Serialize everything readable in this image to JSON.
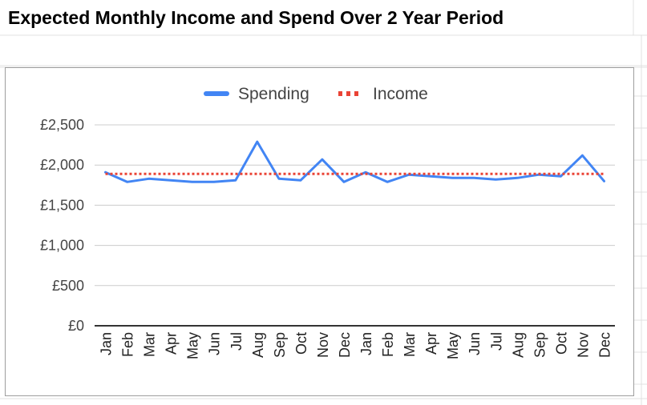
{
  "sheet": {
    "title": "Expected Monthly Income and Spend Over 2 Year Period"
  },
  "chart_data": {
    "type": "line",
    "title": "",
    "xlabel": "",
    "ylabel": "",
    "categories": [
      "Jan",
      "Feb",
      "Mar",
      "Apr",
      "May",
      "Jun",
      "Jul",
      "Aug",
      "Sep",
      "Oct",
      "Nov",
      "Dec",
      "Jan",
      "Feb",
      "Mar",
      "Apr",
      "May",
      "Jun",
      "Jul",
      "Aug",
      "Sep",
      "Oct",
      "Nov",
      "Dec"
    ],
    "series": [
      {
        "name": "Spending",
        "color": "#4285f4",
        "style": "solid",
        "values": [
          1910,
          1790,
          1830,
          1810,
          1790,
          1790,
          1810,
          2290,
          1830,
          1810,
          2070,
          1790,
          1910,
          1790,
          1880,
          1860,
          1840,
          1840,
          1820,
          1840,
          1880,
          1860,
          2120,
          1800
        ]
      },
      {
        "name": "Income",
        "color": "#ea4335",
        "style": "dotted",
        "values": [
          1890,
          1890,
          1890,
          1890,
          1890,
          1890,
          1890,
          1890,
          1890,
          1890,
          1890,
          1890,
          1890,
          1890,
          1890,
          1890,
          1890,
          1890,
          1890,
          1890,
          1890,
          1890,
          1890,
          1890
        ]
      }
    ],
    "ylim": [
      0,
      2500
    ],
    "yticks": [
      0,
      500,
      1000,
      1500,
      2000,
      2500
    ],
    "ytick_labels": [
      "£0",
      "£500",
      "£1,000",
      "£1,500",
      "£2,000",
      "£2,500"
    ],
    "grid": true,
    "legend": "top-center"
  }
}
